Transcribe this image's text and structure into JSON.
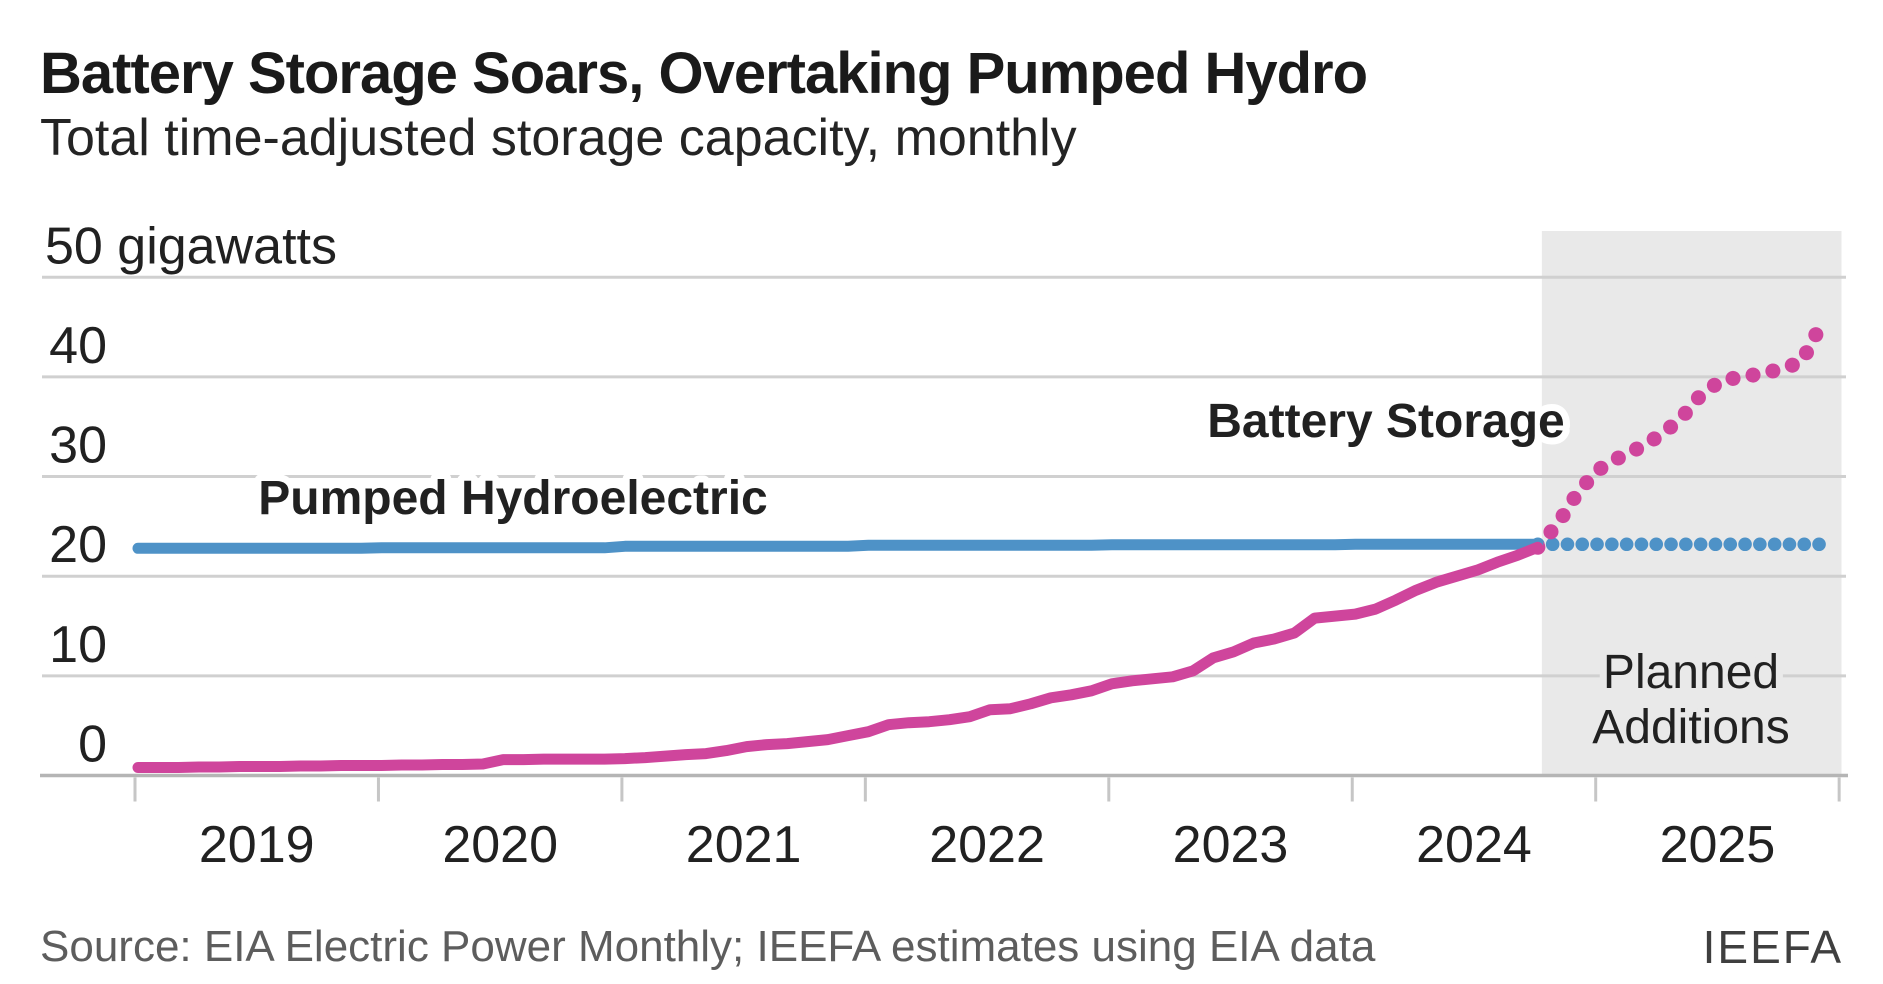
{
  "header": {
    "title": "Battery Storage Soars, Overtaking Pumped Hydro",
    "subtitle": "Total time-adjusted storage capacity, monthly"
  },
  "footer": {
    "source": "Source: EIA Electric Power Monthly; IEEFA estimates using EIA data",
    "logo": "IEEFA"
  },
  "colors": {
    "battery_pink": "#cf459c",
    "pumped_blue": "#4e92c7",
    "planned_region_gray": "#e9e9e9",
    "gridline": "#d0d0d0",
    "axis_line": "#b5b5b5",
    "tick": "#c6c6c6",
    "title_text": "#1a1a1a",
    "label_text": "#212121",
    "planned_text": "#2e2e2e",
    "source_text": "#5d5d5d"
  },
  "chart_data": {
    "type": "line",
    "title": "Battery Storage Soars, Overtaking Pumped Hydro",
    "subtitle": "Total time-adjusted storage capacity, monthly",
    "ylabel": "gigawatts",
    "y_unit_label": "50 gigawatts",
    "ylim": [
      0,
      50
    ],
    "y_ticks": [
      0,
      10,
      20,
      30,
      40,
      50
    ],
    "y_tick_labels_shown": [
      "0",
      "10",
      "20",
      "30",
      "40"
    ],
    "grid": "horizontal",
    "x_year_labels": [
      "2019",
      "2020",
      "2021",
      "2022",
      "2023",
      "2024",
      "2025"
    ],
    "x_start_month": "2019-01",
    "actual_end_month": "2024-10",
    "planned_end_month": "2025-12",
    "planned_region": {
      "label_line1": "Planned",
      "label_line2": "Additions",
      "start_month": "2024-10",
      "end_month": "2026-01"
    },
    "series": [
      {
        "name": "Pumped Hydroelectric",
        "label": "Pumped Hydroelectric",
        "style": "solid",
        "color": "#4e92c7",
        "start_month": "2019-01",
        "values": [
          22.8,
          22.8,
          22.8,
          22.8,
          22.8,
          22.8,
          22.8,
          22.8,
          22.8,
          22.8,
          22.8,
          22.8,
          22.85,
          22.85,
          22.85,
          22.85,
          22.85,
          22.85,
          22.85,
          22.85,
          22.85,
          22.85,
          22.85,
          22.85,
          23.0,
          23.0,
          23.0,
          23.0,
          23.0,
          23.0,
          23.0,
          23.0,
          23.0,
          23.0,
          23.0,
          23.0,
          23.1,
          23.1,
          23.1,
          23.1,
          23.1,
          23.1,
          23.1,
          23.1,
          23.1,
          23.1,
          23.1,
          23.1,
          23.15,
          23.15,
          23.15,
          23.15,
          23.15,
          23.15,
          23.15,
          23.15,
          23.15,
          23.15,
          23.15,
          23.15,
          23.2,
          23.2,
          23.2,
          23.2,
          23.2,
          23.2,
          23.2,
          23.2,
          23.2,
          23.2
        ]
      },
      {
        "name": "Pumped Hydroelectric (planned)",
        "style": "dotted",
        "color": "#4e92c7",
        "start_month": "2024-10",
        "values": [
          23.2,
          23.2,
          23.2,
          23.2,
          23.2,
          23.2,
          23.2,
          23.2,
          23.2,
          23.2,
          23.2,
          23.2,
          23.2,
          23.2,
          23.2
        ]
      },
      {
        "name": "Battery Storage",
        "label": "Battery Storage",
        "style": "solid",
        "color": "#cf459c",
        "start_month": "2019-01",
        "values": [
          0.8,
          0.8,
          0.8,
          0.85,
          0.85,
          0.9,
          0.9,
          0.9,
          0.95,
          0.95,
          1.0,
          1.0,
          1.0,
          1.05,
          1.05,
          1.1,
          1.1,
          1.15,
          1.6,
          1.6,
          1.65,
          1.65,
          1.65,
          1.65,
          1.7,
          1.8,
          1.95,
          2.1,
          2.2,
          2.5,
          2.9,
          3.1,
          3.2,
          3.4,
          3.6,
          4.0,
          4.4,
          5.1,
          5.3,
          5.4,
          5.6,
          5.9,
          6.6,
          6.7,
          7.2,
          7.8,
          8.1,
          8.5,
          9.2,
          9.5,
          9.7,
          9.9,
          10.5,
          11.8,
          12.4,
          13.3,
          13.7,
          14.3,
          15.8,
          16.0,
          16.2,
          16.7,
          17.6,
          18.6,
          19.4,
          20.0,
          20.6,
          21.4,
          22.1,
          22.9
        ]
      },
      {
        "name": "Battery Storage (planned)",
        "style": "dotted",
        "color": "#cf459c",
        "start_month": "2024-10",
        "values": [
          22.9,
          25.3,
          28.5,
          30.7,
          31.9,
          32.9,
          34.1,
          35.7,
          38.1,
          39.6,
          40.0,
          40.3,
          40.8,
          41.5,
          45.4
        ]
      }
    ]
  }
}
